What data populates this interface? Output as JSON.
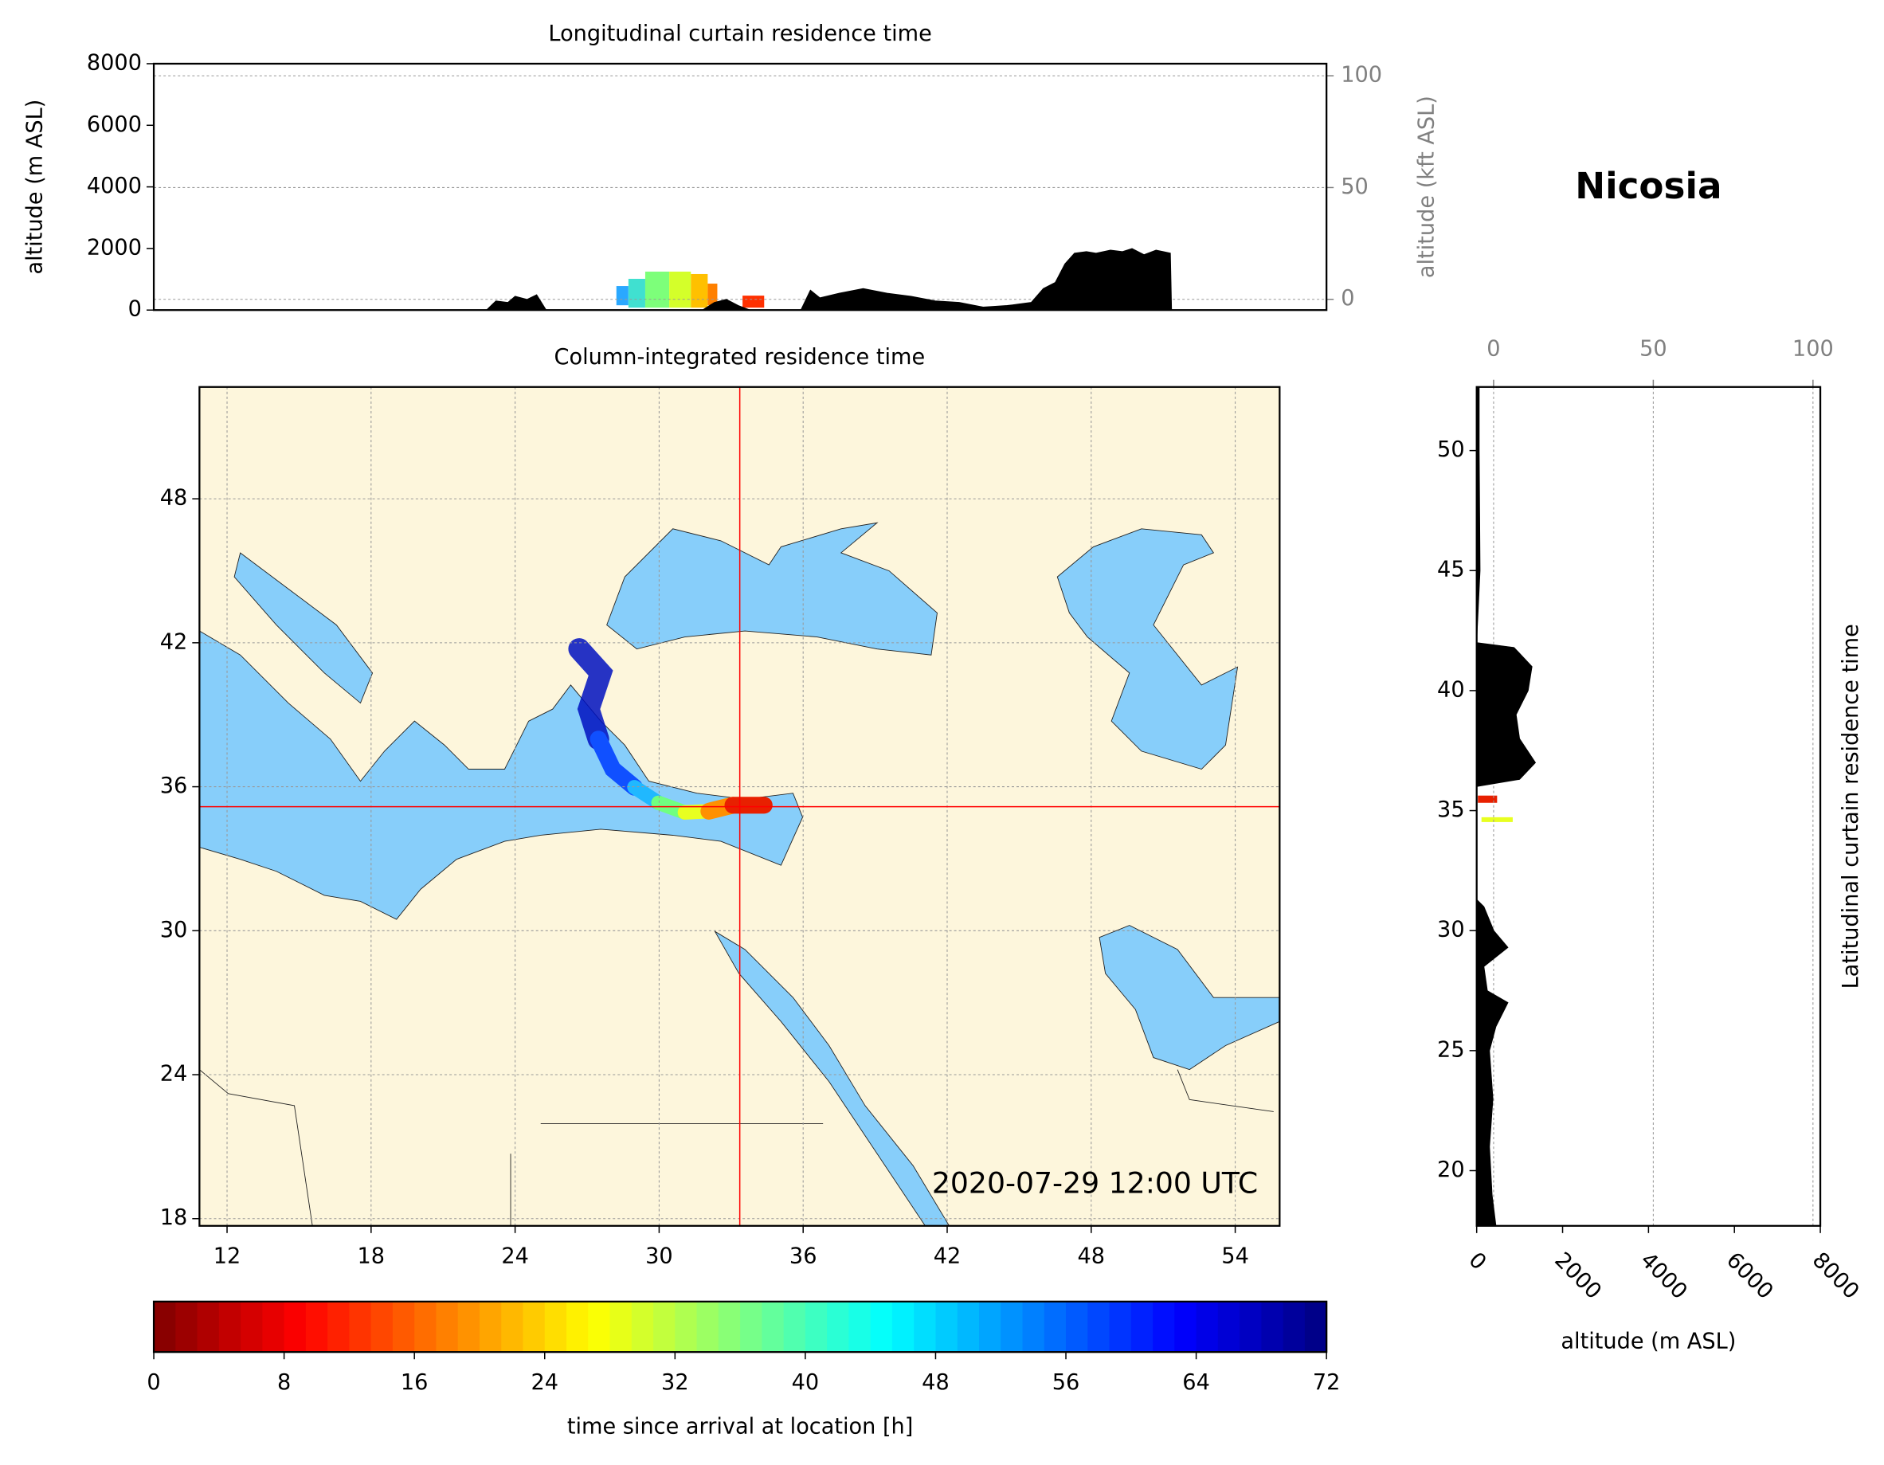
{
  "title": "Nicosia",
  "chart_data": [
    {
      "type": "area",
      "title": "Longitudinal curtain residence time",
      "ylabel": "altitude (m ASL)",
      "y2label": "altitude (kft ASL)",
      "x": [
        22.8,
        23.2,
        23.7,
        24.0,
        24.5,
        24.9,
        25.3,
        31.8,
        32.3,
        32.8,
        33.3,
        33.8,
        35.9,
        36.3,
        36.7,
        37.5,
        38.5,
        39.5,
        40.5,
        41.5,
        42.5,
        43.5,
        44.5,
        45.5,
        46.0,
        46.5,
        46.9,
        47.3,
        47.8,
        48.2,
        48.8,
        49.3,
        49.7,
        50.2,
        50.7,
        51.0,
        51.3,
        51.35
      ],
      "values": [
        0,
        300,
        250,
        450,
        350,
        500,
        0,
        0,
        250,
        350,
        150,
        0,
        0,
        650,
        400,
        550,
        700,
        550,
        450,
        300,
        250,
        100,
        150,
        250,
        700,
        900,
        1500,
        1850,
        1900,
        1850,
        1950,
        1900,
        2000,
        1800,
        1950,
        1900,
        1850,
        0
      ],
      "color": "#000000",
      "xlim": [
        8.95,
        57.8
      ],
      "ylim": [
        0,
        8000
      ],
      "yticks": [
        0,
        2000,
        4000,
        6000,
        8000
      ],
      "y2lim": [
        -4.8,
        105.4
      ],
      "y2ticks": [
        0,
        50,
        100
      ],
      "grid": "y"
    },
    {
      "type": "map",
      "title": "Column-integrated residence time",
      "annotation": "2020-07-29 12:00 UTC",
      "xlim": [
        10.85,
        55.85
      ],
      "ylim": [
        17.7,
        52.66
      ],
      "xticks": [
        12,
        18,
        24,
        30,
        36,
        42,
        48,
        54
      ],
      "yticks": [
        18,
        24,
        30,
        36,
        42,
        48
      ],
      "grid": "both",
      "location": [
        33.36,
        35.17
      ],
      "marker_color": "#ff0000"
    },
    {
      "type": "area",
      "orientation": "horizontal",
      "ylabel": "Latitudinal curtain residence time",
      "xlabel": "altitude (m ASL)",
      "y": [
        17.7,
        19,
        21,
        23,
        25,
        26,
        27,
        27.5,
        28.5,
        29.3,
        30,
        31,
        31.3,
        36,
        36.3,
        37,
        38,
        39,
        40,
        41,
        41.8,
        42,
        45,
        50,
        52.65
      ],
      "values": [
        450,
        360,
        300,
        380,
        300,
        450,
        730,
        250,
        170,
        730,
        400,
        170,
        0,
        0,
        1000,
        1370,
        1000,
        920,
        1200,
        1290,
        870,
        0,
        80,
        60,
        60
      ],
      "color": "#000000",
      "xlim": [
        0,
        8000
      ],
      "xticks": [
        0,
        2000,
        4000,
        6000,
        8000
      ],
      "x2lim": [
        -5.3,
        102.3
      ],
      "x2ticks": [
        0,
        50,
        100
      ],
      "ylim": [
        17.7,
        52.65
      ],
      "yticks": [
        20,
        25,
        30,
        35,
        40,
        45,
        50
      ],
      "grid": "x"
    },
    {
      "type": "colorbar",
      "xlabel": "time since arrival at location [h]",
      "xlim": [
        0,
        72
      ],
      "xticks": [
        0,
        8,
        16,
        24,
        32,
        40,
        48,
        56,
        64,
        72
      ],
      "colormap": "jet_r"
    }
  ]
}
